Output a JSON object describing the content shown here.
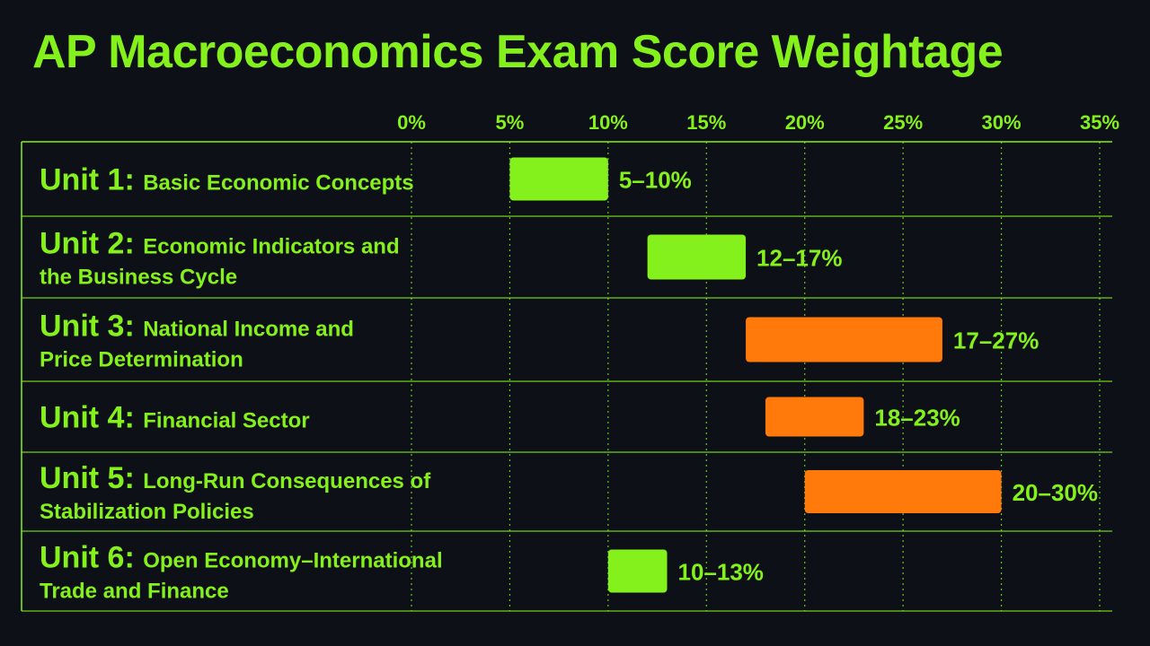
{
  "title": "AP Macroeconomics Exam Score Weightage",
  "colors": {
    "background": "#0d1117",
    "green": "#84f01c",
    "orange": "#ff7a0a",
    "grid": "#84f01c"
  },
  "chart_data": {
    "type": "bar",
    "subtype": "floating-range-horizontal",
    "title": "AP Macroeconomics Exam Score Weightage",
    "xlabel": "",
    "ylabel": "",
    "xlim": [
      0,
      35
    ],
    "xticks": [
      0,
      5,
      10,
      15,
      20,
      25,
      30,
      35
    ],
    "xtick_labels": [
      "0%",
      "5%",
      "10%",
      "15%",
      "20%",
      "25%",
      "30%",
      "35%"
    ],
    "x_axis_position": "top",
    "grid": true,
    "categories": [
      {
        "unit": "Unit 1:",
        "name_lines": [
          "Basic Economic Concepts"
        ]
      },
      {
        "unit": "Unit 2:",
        "name_lines": [
          "Economic Indicators and",
          "the Business Cycle"
        ]
      },
      {
        "unit": "Unit 3:",
        "name_lines": [
          "National Income and",
          "Price Determination"
        ]
      },
      {
        "unit": "Unit 4:",
        "name_lines": [
          "Financial Sector"
        ]
      },
      {
        "unit": "Unit 5:",
        "name_lines": [
          "Long-Run Consequences of",
          "Stabilization Policies"
        ]
      },
      {
        "unit": "Unit 6:",
        "name_lines": [
          "Open Economy–International",
          "Trade and Finance"
        ]
      }
    ],
    "ranges": [
      {
        "low": 5,
        "high": 10,
        "label": "5–10%",
        "color": "#84f01c"
      },
      {
        "low": 12,
        "high": 17,
        "label": "12–17%",
        "color": "#84f01c"
      },
      {
        "low": 17,
        "high": 27,
        "label": "17–27%",
        "color": "#ff7a0a"
      },
      {
        "low": 18,
        "high": 23,
        "label": "18–23%",
        "color": "#ff7a0a"
      },
      {
        "low": 20,
        "high": 30,
        "label": "20–30%",
        "color": "#ff7a0a"
      },
      {
        "low": 10,
        "high": 13,
        "label": "10–13%",
        "color": "#84f01c"
      }
    ]
  }
}
